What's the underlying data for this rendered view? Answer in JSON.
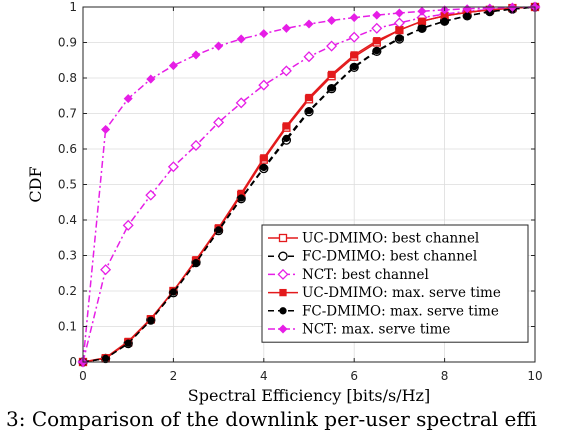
{
  "caption": "3: Comparison of the downlink per-user spectral effi",
  "chart_data": {
    "type": "line",
    "xlabel": "Spectral Efficiency [bits/s/Hz]",
    "ylabel": "CDF",
    "xlim": [
      0,
      10
    ],
    "ylim": [
      0,
      1
    ],
    "xticks": [
      0,
      2,
      4,
      6,
      8,
      10
    ],
    "yticks": [
      0,
      0.1,
      0.2,
      0.3,
      0.4,
      0.5,
      0.6,
      0.7,
      0.8,
      0.9,
      1
    ],
    "xtick_labels": [
      "0",
      "2",
      "4",
      "6",
      "8",
      "10"
    ],
    "ytick_labels": [
      "0",
      "0.1",
      "0.2",
      "0.3",
      "0.4",
      "0.5",
      "0.6",
      "0.7",
      "0.8",
      "0.9",
      "1"
    ],
    "grid": true,
    "legend_position": "bottom-right",
    "x": [
      0,
      0.5,
      1,
      1.5,
      2,
      2.5,
      3,
      3.5,
      4,
      4.5,
      5,
      5.5,
      6,
      6.5,
      7,
      7.5,
      8,
      8.5,
      9,
      9.5,
      10
    ],
    "series": [
      {
        "name": "UC-DMIMO: best channel",
        "color": "#e31a1c",
        "dash": "solid",
        "marker": "square-open",
        "values": [
          0,
          0.01,
          0.055,
          0.12,
          0.2,
          0.285,
          0.375,
          0.47,
          0.57,
          0.66,
          0.74,
          0.805,
          0.86,
          0.9,
          0.935,
          0.96,
          0.975,
          0.985,
          0.992,
          0.997,
          1
        ]
      },
      {
        "name": "FC-DMIMO: best channel",
        "color": "#000000",
        "dash": "dashed",
        "marker": "circle-open",
        "values": [
          0,
          0.01,
          0.052,
          0.118,
          0.195,
          0.28,
          0.37,
          0.46,
          0.545,
          0.625,
          0.705,
          0.77,
          0.83,
          0.875,
          0.91,
          0.94,
          0.96,
          0.975,
          0.987,
          0.994,
          1
        ]
      },
      {
        "name": "NCT: best channel",
        "color": "#e61ee6",
        "dash": "dashdot",
        "marker": "diamond-open",
        "values": [
          0,
          0.26,
          0.385,
          0.47,
          0.55,
          0.61,
          0.675,
          0.73,
          0.78,
          0.82,
          0.86,
          0.89,
          0.915,
          0.94,
          0.955,
          0.97,
          0.98,
          0.988,
          0.993,
          0.997,
          1
        ]
      },
      {
        "name": "UC-DMIMO: max. serve time",
        "color": "#e31a1c",
        "dash": "solid",
        "marker": "square-filled",
        "values": [
          0,
          0.012,
          0.058,
          0.122,
          0.2,
          0.288,
          0.378,
          0.475,
          0.575,
          0.665,
          0.745,
          0.81,
          0.865,
          0.905,
          0.935,
          0.96,
          0.975,
          0.985,
          0.992,
          0.997,
          1
        ]
      },
      {
        "name": "FC-DMIMO: max. serve time",
        "color": "#000000",
        "dash": "dashed",
        "marker": "circle-filled",
        "values": [
          0,
          0.01,
          0.053,
          0.118,
          0.197,
          0.28,
          0.372,
          0.462,
          0.548,
          0.63,
          0.708,
          0.772,
          0.832,
          0.877,
          0.912,
          0.94,
          0.96,
          0.975,
          0.987,
          0.994,
          1
        ]
      },
      {
        "name": "NCT: max. serve time",
        "color": "#e61ee6",
        "dash": "dashdot",
        "marker": "diamond-filled",
        "values": [
          0,
          0.655,
          0.742,
          0.797,
          0.835,
          0.865,
          0.89,
          0.91,
          0.925,
          0.94,
          0.952,
          0.962,
          0.97,
          0.977,
          0.983,
          0.988,
          0.992,
          0.995,
          0.997,
          0.999,
          1
        ]
      }
    ]
  }
}
